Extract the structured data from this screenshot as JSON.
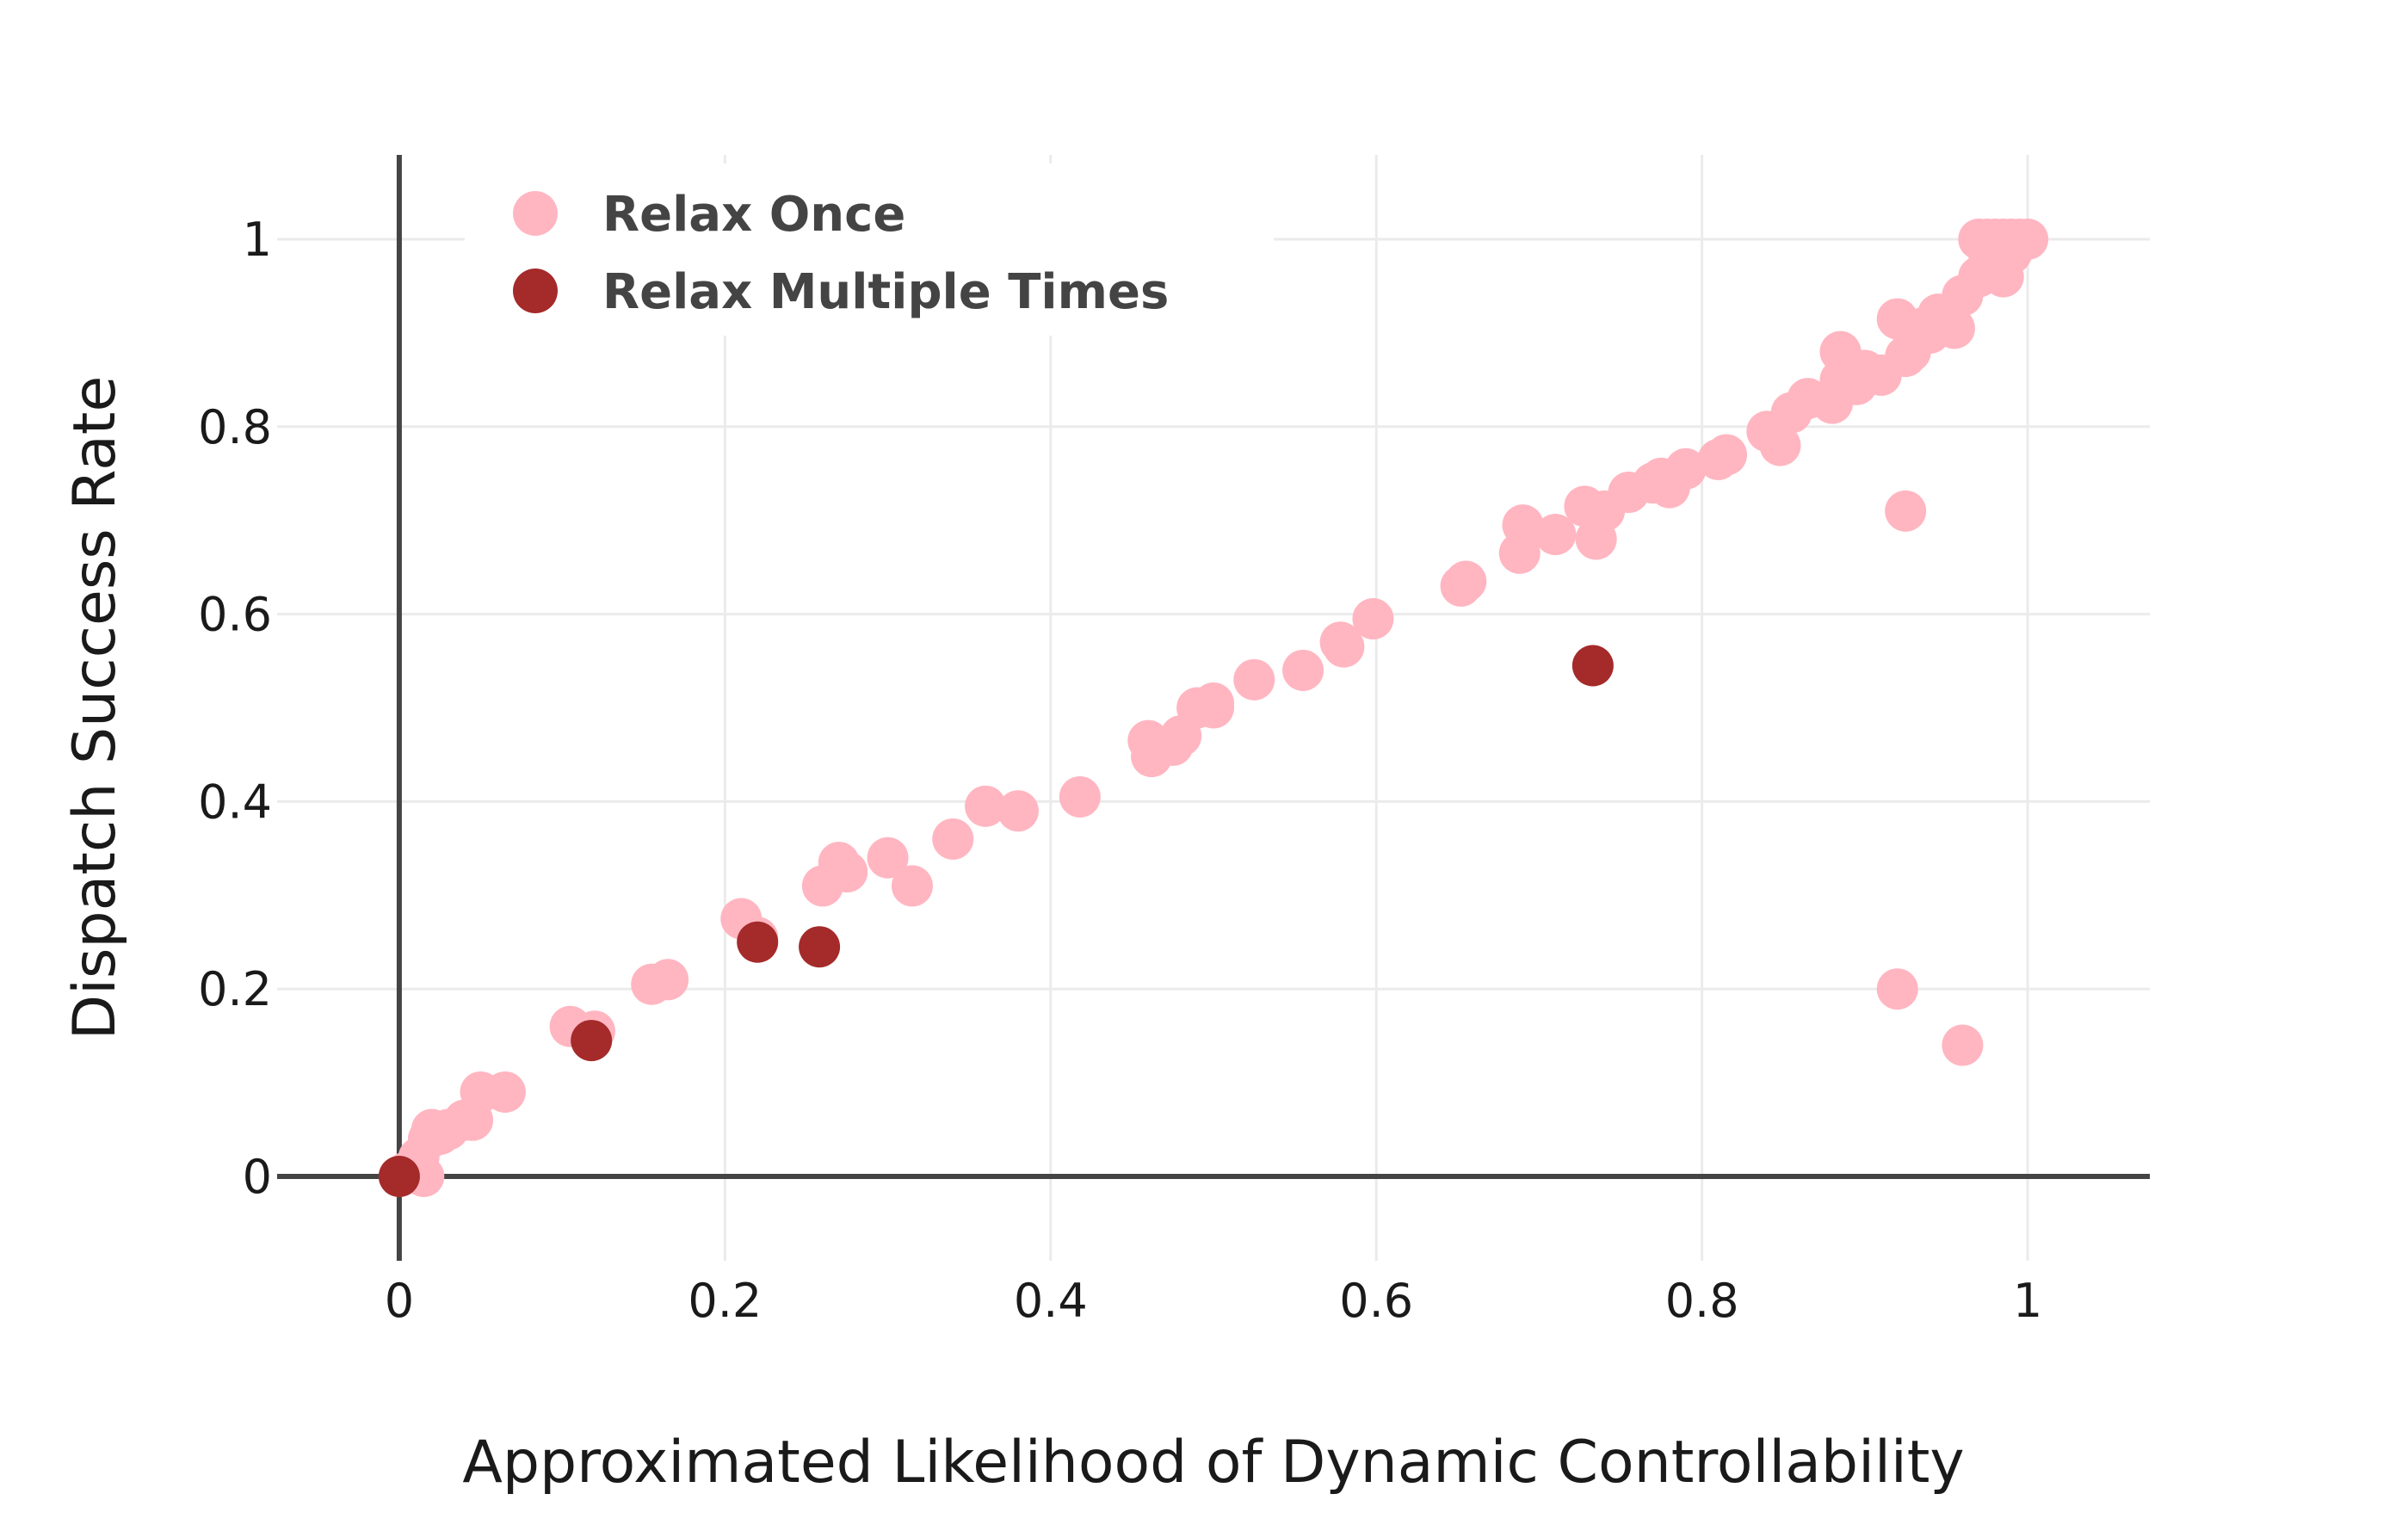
{
  "chart_data": {
    "type": "scatter",
    "xlabel": "Approximated Likelihood of Dynamic Controllability",
    "ylabel": "Dispatch Success Rate",
    "xlim": [
      -0.075,
      1.075
    ],
    "ylim": [
      -0.09,
      1.09
    ],
    "x_ticks": [
      0,
      0.2,
      0.4,
      0.6,
      0.8,
      1
    ],
    "x_tick_labels": [
      "0",
      "0.2",
      "0.4",
      "0.6",
      "0.8",
      "1"
    ],
    "y_ticks": [
      0,
      0.2,
      0.4,
      0.6,
      0.8,
      1
    ],
    "y_tick_labels": [
      "0",
      "0.2",
      "0.4",
      "0.6",
      "0.8",
      "1"
    ],
    "grid": true,
    "zero_lines": true,
    "legend_position": "top-left",
    "series": [
      {
        "name": "Relax Once",
        "color": "#ffb6c1",
        "points": [
          [
            0,
            0
          ],
          [
            0.005,
            0.005
          ],
          [
            0.01,
            0.01
          ],
          [
            0.015,
            0
          ],
          [
            0.012,
            0.02
          ],
          [
            0.018,
            0.04
          ],
          [
            0.02,
            0.05
          ],
          [
            0.025,
            0.045
          ],
          [
            0.03,
            0.05
          ],
          [
            0.04,
            0.06
          ],
          [
            0.045,
            0.06
          ],
          [
            0.05,
            0.09
          ],
          [
            0.065,
            0.09
          ],
          [
            0.105,
            0.16
          ],
          [
            0.12,
            0.155
          ],
          [
            0.155,
            0.205
          ],
          [
            0.165,
            0.21
          ],
          [
            0.21,
            0.275
          ],
          [
            0.22,
            0.255
          ],
          [
            0.26,
            0.31
          ],
          [
            0.27,
            0.335
          ],
          [
            0.275,
            0.325
          ],
          [
            0.3,
            0.34
          ],
          [
            0.315,
            0.31
          ],
          [
            0.34,
            0.36
          ],
          [
            0.36,
            0.395
          ],
          [
            0.38,
            0.39
          ],
          [
            0.418,
            0.405
          ],
          [
            0.46,
            0.465
          ],
          [
            0.462,
            0.448
          ],
          [
            0.475,
            0.46
          ],
          [
            0.48,
            0.47
          ],
          [
            0.49,
            0.5
          ],
          [
            0.5,
            0.505
          ],
          [
            0.5,
            0.5
          ],
          [
            0.525,
            0.53
          ],
          [
            0.555,
            0.54
          ],
          [
            0.578,
            0.57
          ],
          [
            0.58,
            0.565
          ],
          [
            0.598,
            0.595
          ],
          [
            0.652,
            0.63
          ],
          [
            0.655,
            0.635
          ],
          [
            0.688,
            0.665
          ],
          [
            0.69,
            0.695
          ],
          [
            0.71,
            0.685
          ],
          [
            0.728,
            0.715
          ],
          [
            0.735,
            0.68
          ],
          [
            0.74,
            0.71
          ],
          [
            0.755,
            0.73
          ],
          [
            0.77,
            0.74
          ],
          [
            0.775,
            0.745
          ],
          [
            0.78,
            0.735
          ],
          [
            0.79,
            0.755
          ],
          [
            0.81,
            0.765
          ],
          [
            0.815,
            0.77
          ],
          [
            0.84,
            0.795
          ],
          [
            0.848,
            0.78
          ],
          [
            0.855,
            0.815
          ],
          [
            0.865,
            0.83
          ],
          [
            0.88,
            0.825
          ],
          [
            0.885,
            0.85
          ],
          [
            0.885,
            0.88
          ],
          [
            0.89,
            0.865
          ],
          [
            0.895,
            0.845
          ],
          [
            0.9,
            0.86
          ],
          [
            0.91,
            0.855
          ],
          [
            0.92,
            0.915
          ],
          [
            0.925,
            0.875
          ],
          [
            0.928,
            0.88
          ],
          [
            0.93,
            0.89
          ],
          [
            0.935,
            0.905
          ],
          [
            0.94,
            0.9
          ],
          [
            0.945,
            0.92
          ],
          [
            0.955,
            0.905
          ],
          [
            0.96,
            0.94
          ],
          [
            0.97,
            0.96
          ],
          [
            0.975,
            0.97
          ],
          [
            0.98,
            0.975
          ],
          [
            0.985,
            0.96
          ],
          [
            0.99,
            0.985
          ],
          [
            0.97,
            1.0
          ],
          [
            0.975,
            1.0
          ],
          [
            0.98,
            1.0
          ],
          [
            0.985,
            1.0
          ],
          [
            0.99,
            1.0
          ],
          [
            0.995,
            1.0
          ],
          [
            1.0,
            1.0
          ],
          [
            0.925,
            0.71
          ],
          [
            0.92,
            0.2
          ],
          [
            0.96,
            0.14
          ]
        ]
      },
      {
        "name": "Relax Multiple Times",
        "color": "#a52a2a",
        "points": [
          [
            0,
            0
          ],
          [
            0.118,
            0.145
          ],
          [
            0.22,
            0.25
          ],
          [
            0.258,
            0.245
          ],
          [
            0.733,
            0.545
          ]
        ]
      }
    ]
  }
}
